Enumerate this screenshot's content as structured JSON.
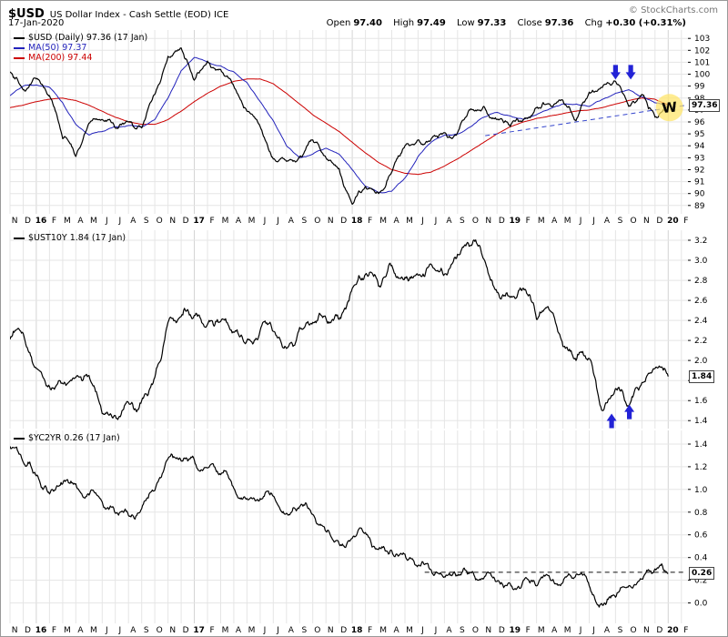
{
  "header": {
    "symbol": "$USD",
    "title": "US Dollar Index - Cash Settle (EOD) ICE",
    "credit": "© StockCharts.com",
    "date": "17-Jan-2020",
    "quote": {
      "open_label": "Open",
      "open": "97.40",
      "high_label": "High",
      "high": "97.49",
      "low_label": "Low",
      "low": "97.33",
      "close_label": "Close",
      "close": "97.36",
      "chg_label": "Chg",
      "chg": "+0.30 (+0.31%)"
    }
  },
  "axis": {
    "month_labels": [
      "N",
      "D",
      "16",
      "F",
      "M",
      "A",
      "M",
      "J",
      "J",
      "A",
      "S",
      "O",
      "N",
      "D",
      "17",
      "F",
      "M",
      "A",
      "M",
      "J",
      "J",
      "A",
      "S",
      "O",
      "N",
      "D",
      "18",
      "F",
      "M",
      "A",
      "M",
      "J",
      "J",
      "A",
      "S",
      "O",
      "N",
      "D",
      "19",
      "F",
      "M",
      "A",
      "M",
      "J",
      "J",
      "A",
      "S",
      "O",
      "N",
      "D",
      "20",
      "F"
    ],
    "year_bold_indices": [
      2,
      14,
      26,
      38,
      50
    ]
  },
  "colors": {
    "grid": "#e5e5e5",
    "grid_year": "#d4d4d4",
    "annotation_blue": "#2323d6",
    "highlight_yellow": "#ffe566",
    "trendline_blue": "#3344cc",
    "dashed_black": "#111111"
  },
  "chart_data": [
    {
      "panel": "$USD",
      "type": "line",
      "x_interval": "monthly, Nov 2015 - Jan 2020",
      "ylim": [
        88.3,
        103.7
      ],
      "yticks": [
        89,
        90,
        91,
        92,
        93,
        94,
        95,
        96,
        97,
        98,
        99,
        100,
        101,
        102,
        103
      ],
      "tick_decimals": 0,
      "last_label": "97.36",
      "legend": [
        {
          "label": "$USD (Daily) 97.36 (17 Jan)",
          "color": "#000000"
        },
        {
          "label": "MA(50) 97.37",
          "color": "#2222bb"
        },
        {
          "label": "MA(200) 97.44",
          "color": "#cc0000"
        }
      ],
      "series": [
        {
          "name": "$USD close",
          "color": "#000000",
          "width": 1.2,
          "jitter": 0.45,
          "values": [
            100.2,
            98.7,
            99.6,
            98.2,
            94.6,
            93.1,
            95.9,
            96.2,
            95.5,
            96.0,
            95.5,
            98.3,
            101.5,
            102.2,
            99.5,
            101.1,
            100.4,
            99.0,
            96.9,
            95.6,
            92.9,
            92.7,
            93.1,
            94.5,
            93.0,
            92.1,
            89.1,
            90.6,
            90.0,
            91.8,
            94.0,
            94.5,
            94.6,
            95.1,
            95.1,
            97.1,
            97.3,
            96.2,
            95.6,
            96.2,
            97.2,
            97.5,
            97.8,
            96.1,
            98.5,
            98.9,
            99.4,
            97.3,
            98.3,
            96.4,
            97.36
          ]
        },
        {
          "name": "MA(50)",
          "color": "#2222bb",
          "width": 1,
          "jitter": 0.07,
          "values": [
            98.2,
            99.0,
            99.1,
            98.9,
            97.6,
            95.8,
            94.9,
            95.2,
            95.6,
            95.7,
            95.6,
            96.2,
            98.0,
            100.3,
            101.4,
            101.0,
            100.7,
            100.2,
            99.3,
            97.7,
            96.1,
            94.0,
            93.0,
            93.3,
            93.8,
            93.3,
            92.0,
            90.6,
            90.1,
            90.2,
            91.3,
            93.1,
            94.3,
            94.9,
            95.0,
            95.6,
            96.4,
            96.8,
            96.5,
            96.2,
            96.6,
            97.1,
            97.5,
            97.5,
            97.3,
            97.9,
            98.4,
            98.7,
            98.1,
            97.6,
            97.37
          ]
        },
        {
          "name": "MA(200)",
          "color": "#cc0000",
          "width": 1,
          "jitter": 0.02,
          "values": [
            97.2,
            97.4,
            97.7,
            97.9,
            98.0,
            97.8,
            97.4,
            96.9,
            96.4,
            96.0,
            95.8,
            95.8,
            96.2,
            96.9,
            97.7,
            98.4,
            99.0,
            99.4,
            99.6,
            99.6,
            99.2,
            98.4,
            97.5,
            96.6,
            95.9,
            95.2,
            94.3,
            93.4,
            92.6,
            92.0,
            91.7,
            91.6,
            91.8,
            92.3,
            92.9,
            93.6,
            94.3,
            95.0,
            95.6,
            96.0,
            96.3,
            96.5,
            96.7,
            96.9,
            97.0,
            97.2,
            97.5,
            97.8,
            98.0,
            97.9,
            97.44
          ]
        }
      ],
      "annotations": [
        {
          "type": "arrow-down",
          "month": 46.0,
          "value": 99.55
        },
        {
          "type": "arrow-down",
          "month": 47.15,
          "value": 99.55
        },
        {
          "type": "trendline-dashed",
          "from": {
            "month": 36.1,
            "value": 94.85
          },
          "to": {
            "month": 51.4,
            "value": 97.4
          }
        },
        {
          "type": "highlight-circle",
          "month": 50.1,
          "value": 97.2,
          "label": "W"
        }
      ]
    },
    {
      "panel": "$UST10Y",
      "type": "line",
      "x_interval": "monthly, Nov 2015 - Jan 2020",
      "ylim": [
        1.32,
        3.3
      ],
      "yticks": [
        1.4,
        1.6,
        1.8,
        2.0,
        2.2,
        2.4,
        2.6,
        2.8,
        3.0,
        3.2
      ],
      "tick_decimals": 1,
      "last_label": "1.84",
      "legend": [
        {
          "label": "$UST10Y 1.84 (17 Jan)",
          "color": "#000000"
        }
      ],
      "series": [
        {
          "name": "$UST10Y",
          "color": "#000000",
          "width": 1.2,
          "jitter": 0.09,
          "values": [
            2.21,
            2.27,
            1.92,
            1.74,
            1.77,
            1.83,
            1.85,
            1.47,
            1.45,
            1.58,
            1.6,
            1.83,
            2.38,
            2.44,
            2.45,
            2.36,
            2.39,
            2.28,
            2.2,
            2.3,
            2.29,
            2.12,
            2.33,
            2.38,
            2.42,
            2.41,
            2.72,
            2.86,
            2.74,
            2.95,
            2.83,
            2.85,
            2.96,
            2.86,
            3.06,
            3.15,
            3.01,
            2.68,
            2.63,
            2.72,
            2.41,
            2.5,
            2.14,
            2.0,
            2.02,
            1.5,
            1.72,
            1.54,
            1.78,
            1.92,
            1.84
          ]
        }
      ],
      "annotations": [
        {
          "type": "arrow-up",
          "month": 45.7,
          "value": 1.47
        },
        {
          "type": "arrow-up",
          "month": 47.05,
          "value": 1.56
        }
      ]
    },
    {
      "panel": "$YC2YR",
      "type": "line",
      "x_interval": "monthly, Nov 2015 - Jan 2020",
      "ylim": [
        -0.18,
        1.52
      ],
      "yticks": [
        0.0,
        0.2,
        0.4,
        0.6,
        0.8,
        1.0,
        1.2,
        1.4
      ],
      "tick_decimals": 1,
      "last_label": "0.26",
      "legend": [
        {
          "label": "$YC2YR 0.26 (17 Jan)",
          "color": "#000000"
        }
      ],
      "series": [
        {
          "name": "$YC2YR",
          "color": "#000000",
          "width": 1.2,
          "jitter": 0.07,
          "values": [
            1.38,
            1.24,
            1.12,
            0.96,
            1.05,
            1.05,
            0.95,
            0.89,
            0.79,
            0.77,
            0.83,
            0.99,
            1.27,
            1.25,
            1.26,
            1.19,
            1.13,
            1.01,
            0.92,
            0.92,
            0.94,
            0.79,
            0.85,
            0.78,
            0.63,
            0.52,
            0.57,
            0.62,
            0.47,
            0.46,
            0.43,
            0.33,
            0.29,
            0.23,
            0.24,
            0.27,
            0.22,
            0.19,
            0.17,
            0.2,
            0.15,
            0.22,
            0.18,
            0.25,
            0.15,
            -0.02,
            0.05,
            0.15,
            0.21,
            0.3,
            0.26
          ]
        }
      ],
      "annotations": [
        {
          "type": "hline-dashed",
          "value": 0.27,
          "from_month": 31.5,
          "to_month": 51.4
        }
      ]
    }
  ]
}
